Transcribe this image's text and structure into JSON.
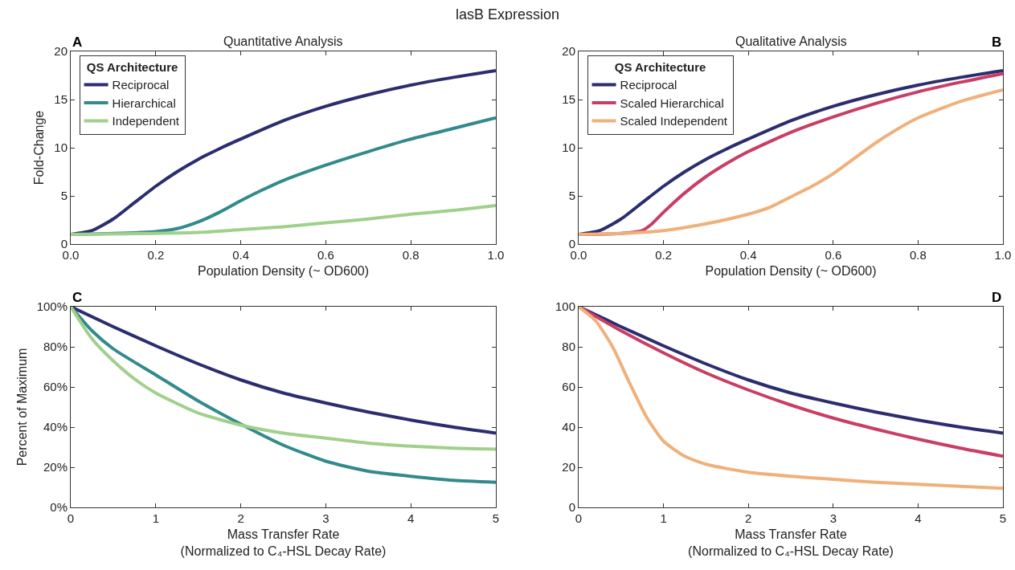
{
  "chart_data": [
    {
      "type": "line",
      "title": "lasB Expression",
      "subtitle": "Quantitative Analysis",
      "xlabel": "Population Density (~ OD600)",
      "ylabel": "Fold-Change",
      "legend_title": "QS Architecture",
      "legend": "top left",
      "annotations": [
        "A"
      ],
      "xlim": [
        0,
        1
      ],
      "xticks": [
        {
          "value": 0,
          "label": "0.0"
        },
        {
          "value": 0.2,
          "label": "0.2"
        },
        {
          "value": 0.4,
          "label": "0.4"
        },
        {
          "value": 0.6,
          "label": "0.6"
        },
        {
          "value": 0.8,
          "label": "0.8"
        },
        {
          "value": 1,
          "label": "1.0"
        }
      ],
      "ylim": [
        0,
        20
      ],
      "yticks": [
        0,
        5,
        10,
        15,
        20
      ],
      "grid": false,
      "marker": "none",
      "line_style": "solid",
      "series": [
        {
          "name": "Reciprocal",
          "color": "#2b2d6e",
          "x": [
            0,
            0.05,
            0.1,
            0.15,
            0.2,
            0.25,
            0.3,
            0.35,
            0.4,
            0.5,
            0.6,
            0.7,
            0.8,
            0.9,
            1.0
          ],
          "values": [
            1,
            1.4,
            2.6,
            4.3,
            6.0,
            7.5,
            8.8,
            9.9,
            10.9,
            12.8,
            14.3,
            15.5,
            16.5,
            17.3,
            18.0
          ]
        },
        {
          "name": "Hierarchical",
          "color": "#338a8c",
          "x": [
            0,
            0.1,
            0.2,
            0.25,
            0.3,
            0.35,
            0.4,
            0.45,
            0.5,
            0.6,
            0.7,
            0.8,
            0.9,
            1.0
          ],
          "values": [
            1,
            1.1,
            1.3,
            1.6,
            2.3,
            3.3,
            4.5,
            5.6,
            6.6,
            8.2,
            9.6,
            10.9,
            12.0,
            13.1
          ]
        },
        {
          "name": "Independent",
          "color": "#a0d08c",
          "x": [
            0,
            0.2,
            0.3,
            0.4,
            0.5,
            0.6,
            0.7,
            0.8,
            0.9,
            1.0
          ],
          "values": [
            1,
            1.1,
            1.2,
            1.5,
            1.8,
            2.2,
            2.6,
            3.1,
            3.5,
            4.0
          ]
        }
      ]
    },
    {
      "type": "line",
      "title": "Qualitative Analysis",
      "xlabel": "Population Density (~ OD600)",
      "legend_title": "QS Architecture",
      "legend": "top left",
      "annotations": [
        "B"
      ],
      "xlim": [
        0,
        1
      ],
      "xticks": [
        {
          "value": 0,
          "label": "0.0"
        },
        {
          "value": 0.2,
          "label": "0.2"
        },
        {
          "value": 0.4,
          "label": "0.4"
        },
        {
          "value": 0.6,
          "label": "0.6"
        },
        {
          "value": 0.8,
          "label": "0.8"
        },
        {
          "value": 1,
          "label": "1.0"
        }
      ],
      "ylim": [
        0,
        20
      ],
      "yticks": [
        0,
        5,
        10,
        15,
        20
      ],
      "grid": false,
      "marker": "none",
      "line_style": "solid",
      "series": [
        {
          "name": "Reciprocal",
          "color": "#2b2d6e",
          "x": [
            0,
            0.05,
            0.1,
            0.15,
            0.2,
            0.25,
            0.3,
            0.35,
            0.4,
            0.5,
            0.6,
            0.7,
            0.8,
            0.9,
            1.0
          ],
          "values": [
            1,
            1.4,
            2.6,
            4.3,
            6.0,
            7.5,
            8.8,
            9.9,
            10.9,
            12.8,
            14.3,
            15.5,
            16.5,
            17.3,
            18.0
          ]
        },
        {
          "name": "Scaled Hierarchical",
          "color": "#c83e65",
          "x": [
            0,
            0.1,
            0.15,
            0.17,
            0.2,
            0.25,
            0.3,
            0.35,
            0.4,
            0.5,
            0.6,
            0.7,
            0.8,
            0.9,
            1.0
          ],
          "values": [
            1,
            1.1,
            1.4,
            2.0,
            3.3,
            5.3,
            7.0,
            8.4,
            9.6,
            11.6,
            13.2,
            14.6,
            15.8,
            16.8,
            17.7
          ]
        },
        {
          "name": "Scaled Independent",
          "color": "#f0b07a",
          "x": [
            0,
            0.1,
            0.2,
            0.3,
            0.4,
            0.45,
            0.5,
            0.55,
            0.6,
            0.65,
            0.7,
            0.75,
            0.8,
            0.9,
            1.0
          ],
          "values": [
            1,
            1.1,
            1.4,
            2.1,
            3.1,
            3.8,
            4.9,
            6.0,
            7.3,
            8.9,
            10.5,
            11.9,
            13.1,
            14.8,
            16.0
          ]
        }
      ]
    },
    {
      "type": "line",
      "xlabel": "Mass Transfer Rate\n(Normalized to C₄-HSL Decay Rate)",
      "ylabel": "Percent of Maximum",
      "legend": false,
      "annotations": [
        "C"
      ],
      "xlim": [
        0,
        5
      ],
      "xticks": [
        0,
        1,
        2,
        3,
        4,
        5
      ],
      "ylim": [
        0,
        100
      ],
      "yticks": [
        {
          "value": 0,
          "label": "0%"
        },
        {
          "value": 20,
          "label": "20%"
        },
        {
          "value": 40,
          "label": "40%"
        },
        {
          "value": 60,
          "label": "60%"
        },
        {
          "value": 80,
          "label": "80%"
        },
        {
          "value": 100,
          "label": "100%"
        }
      ],
      "grid": false,
      "marker": "none",
      "line_style": "solid",
      "series": [
        {
          "color": "#2b2d6e",
          "x": [
            0,
            0.5,
            1,
            1.5,
            2,
            2.5,
            3,
            3.5,
            4,
            4.5,
            5
          ],
          "values": [
            100,
            90,
            80.5,
            71.5,
            63.5,
            57,
            52,
            47.5,
            43.5,
            40,
            37
          ]
        },
        {
          "color": "#338a8c",
          "x": [
            0,
            0.25,
            0.5,
            1,
            1.5,
            2,
            2.5,
            3,
            3.5,
            4,
            4.5,
            5
          ],
          "values": [
            100,
            88,
            79,
            66,
            53,
            41.5,
            31,
            23,
            18,
            15.5,
            13.5,
            12.5
          ]
        },
        {
          "color": "#a0d08c",
          "x": [
            0,
            0.25,
            0.5,
            0.75,
            1,
            1.5,
            2,
            2.5,
            3,
            3.5,
            4,
            4.5,
            5
          ],
          "values": [
            100,
            84,
            73,
            64,
            57,
            47,
            41,
            37,
            34.5,
            32,
            30.5,
            29.5,
            29
          ]
        }
      ]
    },
    {
      "type": "line",
      "xlabel": "Mass Transfer Rate\n(Normalized to C₄-HSL Decay Rate)",
      "legend": false,
      "annotations": [
        "D"
      ],
      "xlim": [
        0,
        5
      ],
      "xticks": [
        0,
        1,
        2,
        3,
        4,
        5
      ],
      "ylim": [
        0,
        100
      ],
      "yticks": [
        0,
        20,
        40,
        60,
        80,
        100
      ],
      "grid": false,
      "marker": "none",
      "line_style": "solid",
      "series": [
        {
          "color": "#2b2d6e",
          "x": [
            0,
            0.5,
            1,
            1.5,
            2,
            2.5,
            3,
            3.5,
            4,
            4.5,
            5
          ],
          "values": [
            100,
            90,
            80.5,
            71.5,
            63.5,
            57,
            52,
            47.5,
            43.5,
            40,
            37
          ]
        },
        {
          "color": "#c83e65",
          "x": [
            0,
            0.5,
            1,
            1.5,
            2,
            2.5,
            3,
            3.5,
            4,
            4.5,
            5
          ],
          "values": [
            100,
            88,
            77,
            67,
            58.5,
            51,
            44.5,
            39,
            34,
            29.5,
            25.5
          ]
        },
        {
          "color": "#f0b07a",
          "x": [
            0,
            0.2,
            0.4,
            0.6,
            0.8,
            1,
            1.25,
            1.5,
            2,
            2.5,
            3,
            3.5,
            4,
            4.5,
            5
          ],
          "values": [
            100,
            93,
            80,
            62,
            45,
            33,
            25.5,
            21.5,
            17.5,
            15.5,
            14,
            12.5,
            11.5,
            10.5,
            9.5
          ]
        }
      ]
    }
  ]
}
